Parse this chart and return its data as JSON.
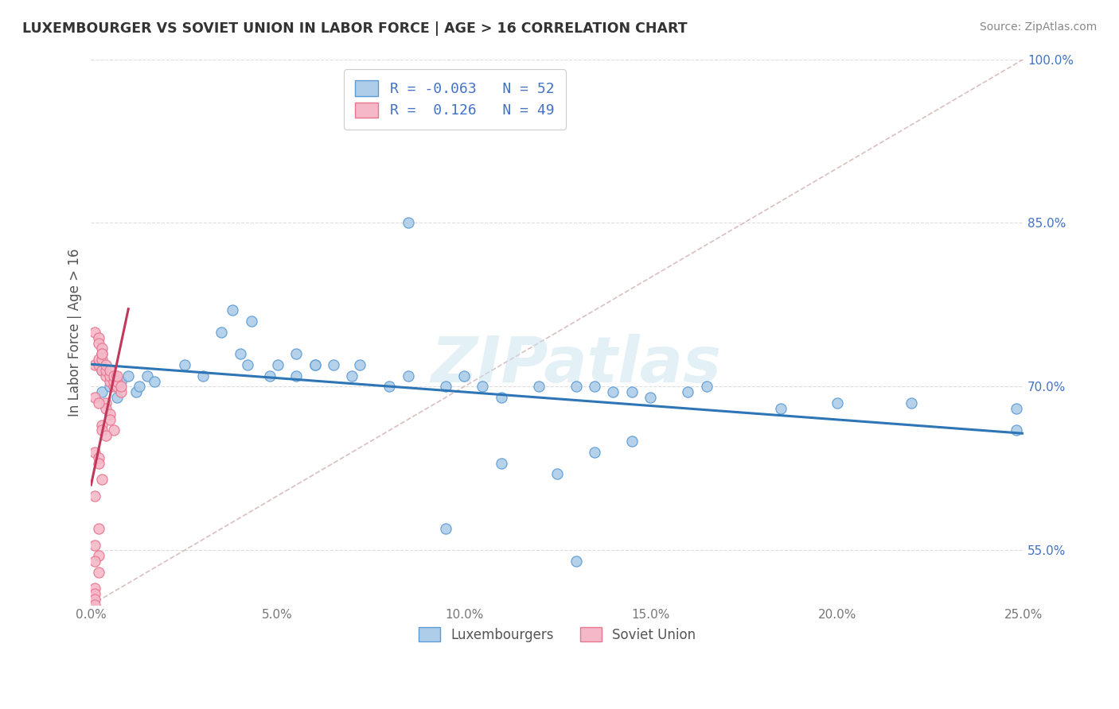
{
  "title": "LUXEMBOURGER VS SOVIET UNION IN LABOR FORCE | AGE > 16 CORRELATION CHART",
  "source_text": "Source: ZipAtlas.com",
  "ylabel": "In Labor Force | Age > 16",
  "legend_labels": [
    "Luxembourgers",
    "Soviet Union"
  ],
  "r_values": [
    -0.063,
    0.126
  ],
  "n_values": [
    52,
    49
  ],
  "xlim": [
    0.0,
    0.25
  ],
  "ylim": [
    0.5,
    1.0
  ],
  "xtick_vals": [
    0.0,
    0.05,
    0.1,
    0.15,
    0.2,
    0.25
  ],
  "xticklabels": [
    "0.0%",
    "5.0%",
    "10.0%",
    "15.0%",
    "20.0%",
    "25.0%"
  ],
  "ytick_vals": [
    0.55,
    0.7,
    0.85,
    1.0
  ],
  "yticklabels": [
    "55.0%",
    "70.0%",
    "85.0%",
    "100.0%"
  ],
  "blue_fill": "#aecde8",
  "blue_edge": "#5b9bd5",
  "pink_fill": "#f4b8c8",
  "pink_edge": "#e8768f",
  "blue_line_color": "#2e75b6",
  "pink_line_color": "#c0385a",
  "ref_line_color": "#d0b0b0",
  "grid_color": "#dddddd",
  "background_color": "#ffffff",
  "watermark_text": "ZIPatlas",
  "tick_label_color": "#4472c4",
  "ylabel_color": "#555555",
  "blue_x": [
    0.003,
    0.005,
    0.008,
    0.01,
    0.012,
    0.013,
    0.015,
    0.017,
    0.003,
    0.007,
    0.025,
    0.03,
    0.035,
    0.04,
    0.042,
    0.048,
    0.05,
    0.055,
    0.06,
    0.065,
    0.038,
    0.043,
    0.055,
    0.06,
    0.07,
    0.072,
    0.08,
    0.085,
    0.095,
    0.1,
    0.105,
    0.11,
    0.12,
    0.13,
    0.135,
    0.14,
    0.145,
    0.15,
    0.16,
    0.165,
    0.135,
    0.145,
    0.185,
    0.22,
    0.248,
    0.085,
    0.11,
    0.125,
    0.095,
    0.13,
    0.2,
    0.248
  ],
  "blue_y": [
    0.695,
    0.7,
    0.705,
    0.71,
    0.695,
    0.7,
    0.71,
    0.705,
    0.715,
    0.69,
    0.72,
    0.71,
    0.75,
    0.73,
    0.72,
    0.71,
    0.72,
    0.73,
    0.72,
    0.72,
    0.77,
    0.76,
    0.71,
    0.72,
    0.71,
    0.72,
    0.7,
    0.71,
    0.7,
    0.71,
    0.7,
    0.69,
    0.7,
    0.7,
    0.7,
    0.695,
    0.695,
    0.69,
    0.695,
    0.7,
    0.64,
    0.65,
    0.68,
    0.685,
    0.68,
    0.85,
    0.63,
    0.62,
    0.57,
    0.54,
    0.685,
    0.66
  ],
  "pink_x": [
    0.001,
    0.002,
    0.002,
    0.003,
    0.003,
    0.003,
    0.004,
    0.004,
    0.004,
    0.005,
    0.005,
    0.005,
    0.006,
    0.006,
    0.006,
    0.007,
    0.007,
    0.007,
    0.008,
    0.008,
    0.001,
    0.002,
    0.002,
    0.003,
    0.003,
    0.004,
    0.004,
    0.005,
    0.005,
    0.006,
    0.001,
    0.002,
    0.003,
    0.003,
    0.004,
    0.001,
    0.002,
    0.002,
    0.003,
    0.001,
    0.002,
    0.001,
    0.002,
    0.001,
    0.002,
    0.001,
    0.001,
    0.001,
    0.001
  ],
  "pink_y": [
    0.72,
    0.72,
    0.725,
    0.715,
    0.725,
    0.73,
    0.71,
    0.715,
    0.72,
    0.705,
    0.71,
    0.715,
    0.7,
    0.705,
    0.71,
    0.7,
    0.705,
    0.71,
    0.695,
    0.7,
    0.75,
    0.745,
    0.74,
    0.735,
    0.73,
    0.685,
    0.68,
    0.675,
    0.67,
    0.66,
    0.69,
    0.685,
    0.665,
    0.66,
    0.655,
    0.64,
    0.635,
    0.63,
    0.615,
    0.6,
    0.57,
    0.555,
    0.545,
    0.54,
    0.53,
    0.515,
    0.51,
    0.505,
    0.5
  ]
}
